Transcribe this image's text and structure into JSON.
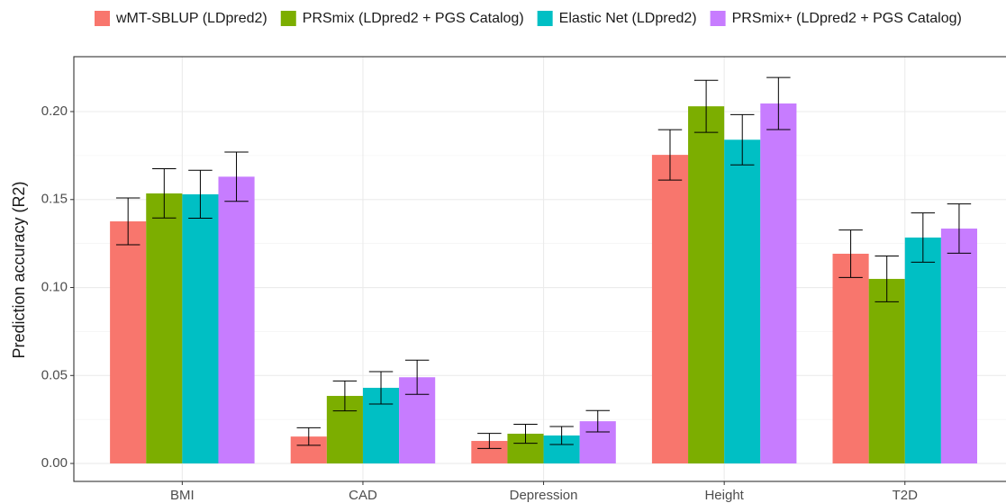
{
  "chart_data": {
    "type": "bar",
    "y_label": "Prediction accuracy (R2)",
    "categories": [
      "BMI",
      "CAD",
      "Depression",
      "Height",
      "T2D"
    ],
    "series": [
      {
        "name": "wMT-SBLUP (LDpred2)",
        "color": "#F8766D",
        "values": [
          0.1376,
          0.0153,
          0.0128,
          0.1754,
          0.1192
        ],
        "errors": [
          0.0133,
          0.005,
          0.0043,
          0.0143,
          0.0135
        ]
      },
      {
        "name": "PRSmix (LDpred2 + PGS Catalog)",
        "color": "#7CAE00",
        "values": [
          0.1535,
          0.0384,
          0.0169,
          0.203,
          0.1049
        ],
        "errors": [
          0.014,
          0.0085,
          0.0054,
          0.0148,
          0.013
        ]
      },
      {
        "name": "Elastic Net (LDpred2)",
        "color": "#00BFC4",
        "values": [
          0.153,
          0.043,
          0.0159,
          0.184,
          0.1284
        ],
        "errors": [
          0.0136,
          0.0092,
          0.0051,
          0.0143,
          0.014
        ]
      },
      {
        "name": "PRSmix+ (LDpred2 + PGS Catalog)",
        "color": "#C77CFF",
        "values": [
          0.163,
          0.049,
          0.024,
          0.2046,
          0.1335
        ],
        "errors": [
          0.014,
          0.0097,
          0.0061,
          0.0148,
          0.014
        ]
      }
    ],
    "ylim": [
      -0.0102,
      0.2312
    ],
    "yticks": [
      {
        "value": 0,
        "label": "0.00"
      },
      0.05,
      {
        "value": 0.1,
        "label": "0.10"
      },
      0.15,
      {
        "value": 0.2,
        "label": "0.20"
      }
    ],
    "grid": true,
    "legend": "top"
  }
}
